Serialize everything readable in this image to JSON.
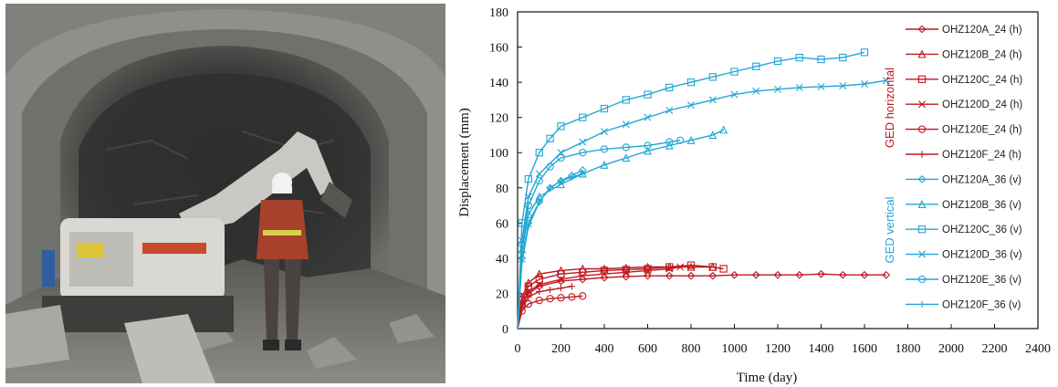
{
  "photo": {
    "subject": "tunnel excavation face with excavator and worker"
  },
  "colors": {
    "horizontal": "#c0181e",
    "vertical": "#22a7d4",
    "axis": "#111111"
  },
  "chart_data": {
    "type": "line",
    "title": "",
    "xlabel": "Time (day)",
    "ylabel": "Displacement (mm)",
    "xlim": [
      0,
      2400
    ],
    "ylim": [
      0,
      180
    ],
    "xticks": [
      "0",
      "200",
      "400",
      "600",
      "800",
      "1000",
      "1200",
      "1400",
      "1600",
      "1800",
      "2000",
      "2200",
      "2400"
    ],
    "yticks": [
      "0",
      "20",
      "40",
      "60",
      "80",
      "100",
      "120",
      "140",
      "160",
      "180"
    ],
    "legend_position": "right",
    "group_labels": {
      "horizontal": "GED horizontal",
      "vertical": "GED vertical"
    },
    "series": [
      {
        "name": "OHZ120A_24 (h)",
        "group": "horizontal",
        "marker": "diamond",
        "x": [
          0,
          20,
          50,
          100,
          200,
          300,
          400,
          500,
          600,
          700,
          800,
          900,
          1000,
          1100,
          1200,
          1300,
          1400,
          1500,
          1600,
          1700
        ],
        "y": [
          0,
          14,
          20,
          24,
          27,
          28,
          29,
          29.5,
          30,
          30,
          30,
          30,
          30.5,
          30.5,
          30.5,
          30.5,
          31,
          30.5,
          30.5,
          30.5
        ]
      },
      {
        "name": "OHZ120B_24 (h)",
        "group": "horizontal",
        "marker": "triangle",
        "x": [
          0,
          20,
          50,
          100,
          200,
          300,
          400,
          500,
          600,
          700,
          800,
          900
        ],
        "y": [
          0,
          18,
          26,
          31,
          33,
          34,
          34,
          34.5,
          35,
          35,
          35,
          35
        ]
      },
      {
        "name": "OHZ120C_24 (h)",
        "group": "horizontal",
        "marker": "square",
        "x": [
          0,
          20,
          50,
          100,
          200,
          300,
          400,
          500,
          600,
          700,
          800,
          900,
          950
        ],
        "y": [
          0,
          16,
          24,
          28,
          31,
          32,
          33,
          33.5,
          34,
          35,
          36,
          35,
          34
        ]
      },
      {
        "name": "OHZ120D_24 (h)",
        "group": "horizontal",
        "marker": "x",
        "x": [
          0,
          20,
          50,
          100,
          200,
          300,
          400,
          500,
          600,
          700,
          750
        ],
        "y": [
          0,
          14,
          21,
          25,
          28,
          30,
          31,
          32,
          33,
          34,
          35
        ]
      },
      {
        "name": "OHZ120E_24 (h)",
        "group": "horizontal",
        "marker": "circle",
        "x": [
          0,
          20,
          50,
          100,
          150,
          200,
          250,
          300
        ],
        "y": [
          0,
          10,
          14,
          16,
          17,
          17.5,
          18,
          18.5
        ]
      },
      {
        "name": "OHZ120F_24 (h)",
        "group": "horizontal",
        "marker": "plus",
        "x": [
          0,
          20,
          50,
          100,
          150,
          200,
          250
        ],
        "y": [
          0,
          12,
          18,
          21,
          22,
          23,
          24
        ]
      },
      {
        "name": "OHZ120A_36 (v)",
        "group": "vertical",
        "marker": "diamond",
        "x": [
          0,
          20,
          50,
          100,
          150,
          200,
          250,
          300
        ],
        "y": [
          0,
          40,
          60,
          72,
          80,
          84,
          87,
          90
        ]
      },
      {
        "name": "OHZ120B_36 (v)",
        "group": "vertical",
        "marker": "triangle",
        "x": [
          0,
          20,
          50,
          100,
          200,
          300,
          400,
          500,
          600,
          700,
          800,
          900,
          950
        ],
        "y": [
          0,
          45,
          65,
          75,
          82,
          88,
          93,
          97,
          101,
          104,
          107,
          110,
          113
        ]
      },
      {
        "name": "OHZ120C_36 (v)",
        "group": "vertical",
        "marker": "square",
        "x": [
          0,
          20,
          50,
          100,
          150,
          200,
          300,
          400,
          500,
          600,
          700,
          800,
          900,
          1000,
          1100,
          1200,
          1300,
          1400,
          1500,
          1600
        ],
        "y": [
          0,
          60,
          85,
          100,
          108,
          115,
          120,
          125,
          130,
          133,
          137,
          140,
          143,
          146,
          149,
          152,
          154,
          153,
          154,
          157
        ]
      },
      {
        "name": "OHZ120D_36 (v)",
        "group": "vertical",
        "marker": "x",
        "x": [
          0,
          20,
          50,
          100,
          200,
          300,
          400,
          500,
          600,
          700,
          800,
          900,
          1000,
          1100,
          1200,
          1300,
          1400,
          1500,
          1600,
          1700
        ],
        "y": [
          0,
          50,
          75,
          88,
          100,
          106,
          112,
          116,
          120,
          124,
          127,
          130,
          133,
          135,
          136,
          137,
          137.5,
          138,
          139,
          141
        ]
      },
      {
        "name": "OHZ120E_36 (v)",
        "group": "vertical",
        "marker": "circle",
        "x": [
          0,
          20,
          50,
          100,
          150,
          200,
          300,
          400,
          500,
          600,
          700,
          750
        ],
        "y": [
          0,
          48,
          70,
          84,
          92,
          97,
          100,
          102,
          103,
          104,
          106,
          107
        ]
      },
      {
        "name": "OHZ120F_36 (v)",
        "group": "vertical",
        "marker": "plus",
        "x": [
          0,
          20,
          50,
          100,
          150,
          200,
          250,
          300
        ],
        "y": [
          0,
          38,
          58,
          72,
          80,
          84,
          86,
          88
        ]
      }
    ]
  }
}
